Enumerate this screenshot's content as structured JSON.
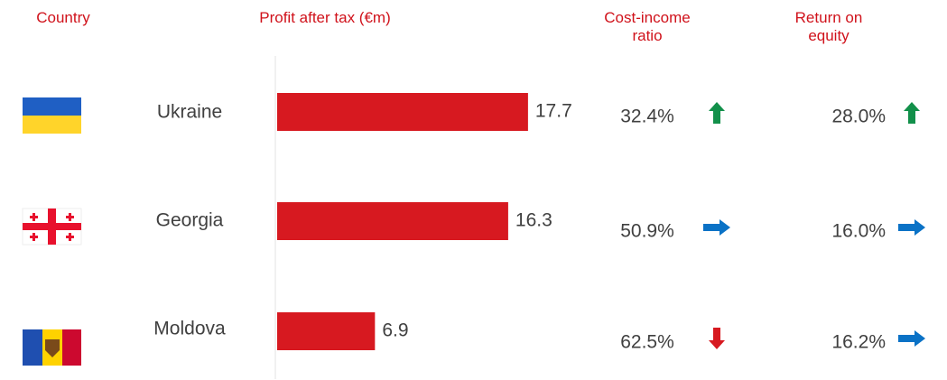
{
  "chart_data": {
    "type": "bar",
    "orientation": "horizontal",
    "headers": {
      "country": "Country",
      "profit": "Profit after tax (€m)",
      "cost_income": "Cost-income ratio",
      "roe": "Return on equity"
    },
    "categories": [
      "Ukraine",
      "Georgia",
      "Moldova"
    ],
    "values": [
      17.7,
      16.3,
      6.9
    ],
    "color": "#d71920",
    "xlim": [
      0,
      20
    ],
    "cost_income": {
      "values": [
        32.4,
        50.9,
        62.5
      ],
      "value_labels": [
        "32.4%",
        "50.9%",
        "62.5%"
      ],
      "arrows": [
        "up",
        "right",
        "down"
      ]
    },
    "roe": {
      "values": [
        28.0,
        16.0,
        16.2
      ],
      "value_labels": [
        "28.0%",
        "16.0%",
        "16.2%"
      ],
      "arrows": [
        "up",
        "right",
        "right"
      ]
    },
    "arrow_colors": {
      "up": "#12904a",
      "right": "#0a72c6",
      "down": "#d71920"
    }
  }
}
